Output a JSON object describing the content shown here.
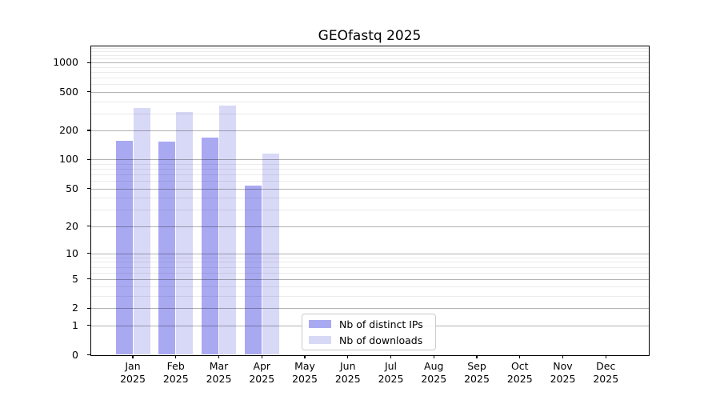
{
  "title": "GEOfastq 2025",
  "chart_data": {
    "type": "bar",
    "title": "GEOfastq 2025",
    "year_label": "2025",
    "categories": [
      "Jan",
      "Feb",
      "Mar",
      "Apr",
      "May",
      "Jun",
      "Jul",
      "Aug",
      "Sep",
      "Oct",
      "Nov",
      "Dec"
    ],
    "series": [
      {
        "name": "Nb of distinct IPs",
        "color": "#a9a9f2",
        "values": [
          156,
          154,
          170,
          54,
          null,
          null,
          null,
          null,
          null,
          null,
          null,
          null
        ]
      },
      {
        "name": "Nb of downloads",
        "color": "#d8d8f7",
        "values": [
          344,
          311,
          359,
          116,
          null,
          null,
          null,
          null,
          null,
          null,
          null,
          null
        ]
      }
    ],
    "y_axis": {
      "scale": "log1p",
      "ticks": [
        0,
        1,
        2,
        5,
        10,
        20,
        50,
        100,
        200,
        500,
        1000
      ],
      "minor_gridlines": [
        3,
        4,
        6,
        7,
        8,
        9,
        30,
        40,
        60,
        70,
        80,
        90,
        300,
        400,
        600,
        700,
        800,
        900,
        1100,
        1200,
        1300,
        1400
      ],
      "max": 1480
    },
    "grid": "on",
    "legend_position": "lower-center-inside"
  },
  "style_colors": {
    "bar_distinct_ips": "#a9a9f2",
    "bar_downloads": "#d8d8f7",
    "major_gridline": "rgba(0,0,0,0.30)",
    "minor_gridline": "rgba(0,0,0,0.08)",
    "spine": "#000000",
    "background": "#ffffff"
  }
}
